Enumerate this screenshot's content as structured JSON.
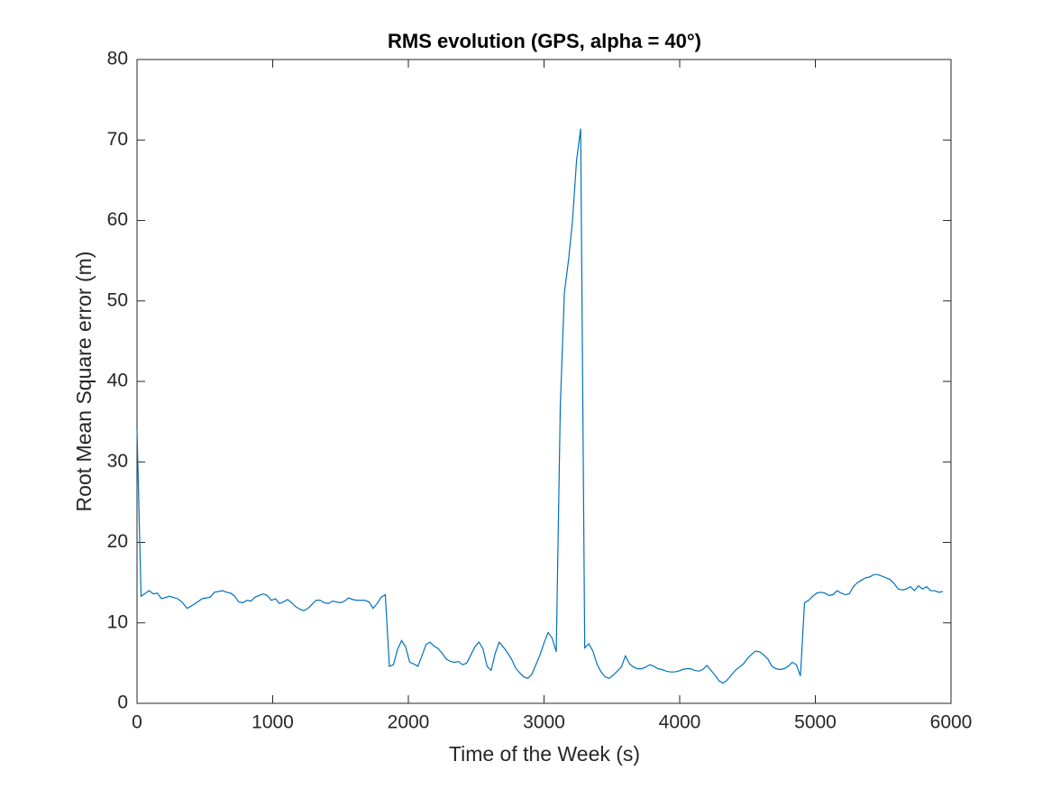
{
  "chart_data": {
    "type": "line",
    "title": "RMS evolution (GPS, alpha = 40°)",
    "xlabel": "Time of the Week (s)",
    "ylabel": "Root Mean Square error (m)",
    "color": "#0072bd",
    "xlim": [
      0,
      6000
    ],
    "xticks": [
      0,
      1000,
      2000,
      3000,
      4000,
      5000,
      6000
    ],
    "ylim": [
      0,
      80
    ],
    "yticks": [
      0,
      10,
      20,
      30,
      40,
      50,
      60,
      70,
      80
    ],
    "grid": false,
    "x": [
      0,
      30,
      90,
      120,
      150,
      180,
      240,
      300,
      330,
      370,
      420,
      480,
      540,
      570,
      630,
      660,
      690,
      720,
      750,
      780,
      810,
      840,
      870,
      930,
      960,
      990,
      1020,
      1050,
      1080,
      1110,
      1140,
      1170,
      1200,
      1230,
      1260,
      1290,
      1320,
      1350,
      1380,
      1410,
      1440,
      1470,
      1500,
      1530,
      1560,
      1590,
      1620,
      1680,
      1710,
      1740,
      1770,
      1800,
      1830,
      1860,
      1890,
      1920,
      1950,
      1980,
      2010,
      2040,
      2070,
      2100,
      2130,
      2160,
      2190,
      2220,
      2250,
      2280,
      2310,
      2340,
      2370,
      2400,
      2430,
      2460,
      2490,
      2520,
      2550,
      2580,
      2610,
      2640,
      2670,
      2700,
      2730,
      2760,
      2790,
      2820,
      2850,
      2880,
      2910,
      2940,
      2970,
      3000,
      3030,
      3060,
      3090,
      3120,
      3150,
      3180,
      3210,
      3240,
      3270,
      3300,
      3330,
      3360,
      3390,
      3420,
      3450,
      3480,
      3510,
      3540,
      3570,
      3600,
      3630,
      3660,
      3690,
      3720,
      3750,
      3780,
      3810,
      3840,
      3870,
      3900,
      3930,
      3960,
      3990,
      4020,
      4050,
      4080,
      4110,
      4140,
      4170,
      4200,
      4230,
      4260,
      4290,
      4320,
      4350,
      4380,
      4410,
      4440,
      4470,
      4500,
      4530,
      4560,
      4590,
      4620,
      4650,
      4680,
      4710,
      4740,
      4770,
      4800,
      4830,
      4860,
      4890,
      4920,
      4950,
      4980,
      5010,
      5040,
      5070,
      5100,
      5130,
      5160,
      5190,
      5220,
      5250,
      5280,
      5310,
      5340,
      5370,
      5400,
      5430,
      5460,
      5490,
      5520,
      5550,
      5580,
      5610,
      5640,
      5670,
      5700,
      5730,
      5760,
      5790,
      5820,
      5850,
      5880,
      5910,
      5940
    ],
    "values": [
      34,
      13.3,
      14,
      13.6,
      13.7,
      13,
      13.3,
      13,
      12.6,
      11.8,
      12.3,
      13,
      13.2,
      13.8,
      14,
      13.8,
      13.7,
      13.3,
      12.6,
      12.5,
      12.8,
      12.7,
      13.2,
      13.6,
      13.4,
      12.8,
      13,
      12.4,
      12.6,
      12.9,
      12.5,
      12,
      11.7,
      11.5,
      11.8,
      12.3,
      12.8,
      12.8,
      12.5,
      12.4,
      12.7,
      12.6,
      12.5,
      12.7,
      13.1,
      12.9,
      12.8,
      12.8,
      12.6,
      11.8,
      12.4,
      13.2,
      13.5,
      4.6,
      4.8,
      6.7,
      7.8,
      7,
      5.1,
      4.9,
      4.6,
      5.9,
      7.3,
      7.6,
      7.1,
      6.8,
      6.2,
      5.5,
      5.2,
      5.1,
      5.2,
      4.8,
      5,
      6,
      7,
      7.6,
      6.8,
      4.6,
      4.1,
      6.2,
      7.6,
      7,
      6.3,
      5.5,
      4.4,
      3.8,
      3.3,
      3.1,
      3.6,
      4.8,
      6,
      7.5,
      8.8,
      8.1,
      6.4,
      37,
      51,
      55,
      60,
      67.5,
      71.4,
      6.9,
      7.4,
      6.5,
      4.9,
      3.9,
      3.3,
      3.1,
      3.5,
      4,
      4.5,
      5.9,
      4.9,
      4.5,
      4.3,
      4.3,
      4.5,
      4.8,
      4.6,
      4.3,
      4.2,
      4,
      3.9,
      3.9,
      4,
      4.2,
      4.3,
      4.3,
      4.1,
      4,
      4.2,
      4.7,
      4.1,
      3.5,
      2.8,
      2.5,
      2.9,
      3.5,
      4.1,
      4.5,
      4.9,
      5.6,
      6.1,
      6.5,
      6.4,
      6,
      5.5,
      4.6,
      4.3,
      4.2,
      4.3,
      4.6,
      5.1,
      4.8,
      3.4,
      12.5,
      12.8,
      13.3,
      13.7,
      13.8,
      13.7,
      13.4,
      13.5,
      14,
      13.7,
      13.5,
      13.6,
      14.5,
      15,
      15.3,
      15.6,
      15.7,
      16,
      16,
      15.8,
      15.6,
      15.4,
      14.9,
      14.2,
      14.1,
      14.2,
      14.5,
      14,
      14.6,
      14.2,
      14.5,
      14,
      14,
      13.8,
      13.9
    ]
  }
}
